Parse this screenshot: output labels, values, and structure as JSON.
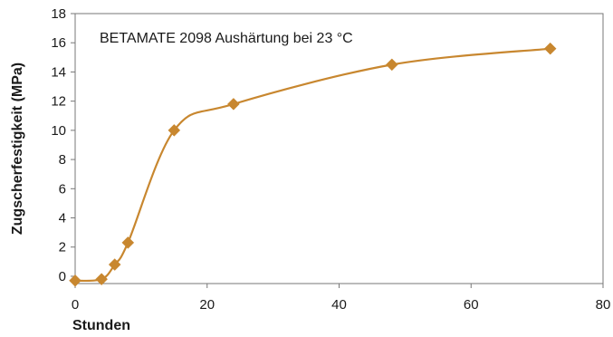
{
  "chart_data": {
    "type": "line",
    "title": "",
    "annotation": "BETAMATE 2098 Aushärtung bei 23 °C",
    "xlabel": "Stunden",
    "ylabel": "Zugscherfestigkeit (MPa)",
    "xlim": [
      0,
      80
    ],
    "ylim": [
      -0.5,
      18
    ],
    "xticks": [
      0,
      20,
      40,
      60,
      80
    ],
    "yticks": [
      0,
      2,
      4,
      6,
      8,
      10,
      12,
      14,
      16,
      18
    ],
    "grid": false,
    "legend": "none",
    "colors": {
      "line": "#C8872F",
      "marker": "#C8872F",
      "frame": "#777777"
    },
    "series": [
      {
        "x": [
          0,
          4,
          6,
          8,
          15,
          24,
          48,
          72
        ],
        "y": [
          -0.3,
          -0.2,
          0.8,
          2.3,
          10.0,
          11.8,
          14.5,
          15.6
        ]
      }
    ]
  }
}
